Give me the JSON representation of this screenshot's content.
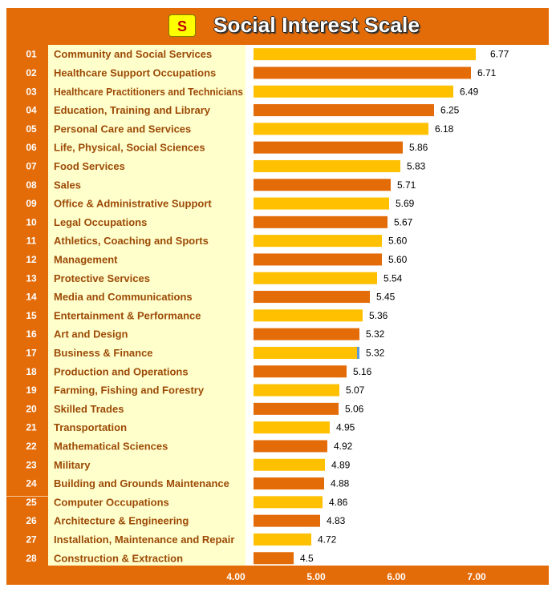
{
  "header": {
    "badge": "S",
    "title": "Social Interest Scale"
  },
  "colors": {
    "frame": "#e36c09",
    "bar_odd": "#ffc000",
    "bar_even": "#e36c09",
    "label_panel": "#ffffcc",
    "category_text": "#9c4a06",
    "highlight": "#5b9bd5"
  },
  "chart_data": {
    "type": "bar",
    "orientation": "horizontal",
    "title": "Social Interest Scale",
    "xlim": [
      4.0,
      7.0
    ],
    "x_ticks": [
      "4.00",
      "5.00",
      "6.00",
      "7.00"
    ],
    "rows": [
      {
        "rank": "01",
        "category": "Community and Social Services",
        "value": 6.77,
        "label": "6.77"
      },
      {
        "rank": "02",
        "category": "Healthcare Support Occupations",
        "value": 6.71,
        "label": "6.71"
      },
      {
        "rank": "03",
        "category": "Healthcare Practitioners and Technicians",
        "value": 6.49,
        "label": "6.49"
      },
      {
        "rank": "04",
        "category": "Education, Training and Library",
        "value": 6.25,
        "label": "6.25"
      },
      {
        "rank": "05",
        "category": "Personal Care and Services",
        "value": 6.18,
        "label": "6.18"
      },
      {
        "rank": "06",
        "category": "Life, Physical, Social Sciences",
        "value": 5.86,
        "label": "5.86"
      },
      {
        "rank": "07",
        "category": "Food Services",
        "value": 5.83,
        "label": "5.83"
      },
      {
        "rank": "08",
        "category": "Sales",
        "value": 5.71,
        "label": "5.71"
      },
      {
        "rank": "09",
        "category": "Office & Administrative Support",
        "value": 5.69,
        "label": "5.69"
      },
      {
        "rank": "10",
        "category": "Legal Occupations",
        "value": 5.67,
        "label": "5.67"
      },
      {
        "rank": "11",
        "category": "Athletics, Coaching and Sports",
        "value": 5.6,
        "label": "5.60"
      },
      {
        "rank": "12",
        "category": "Management",
        "value": 5.6,
        "label": "5.60"
      },
      {
        "rank": "13",
        "category": "Protective Services",
        "value": 5.54,
        "label": "5.54"
      },
      {
        "rank": "14",
        "category": "Media and Communications",
        "value": 5.45,
        "label": "5.45"
      },
      {
        "rank": "15",
        "category": "Entertainment & Performance",
        "value": 5.36,
        "label": "5.36"
      },
      {
        "rank": "16",
        "category": "Art and Design",
        "value": 5.32,
        "label": "5.32"
      },
      {
        "rank": "17",
        "category": "Business & Finance",
        "value": 5.32,
        "label": "5.32",
        "highlight": true
      },
      {
        "rank": "18",
        "category": "Production and Operations",
        "value": 5.16,
        "label": "5.16"
      },
      {
        "rank": "19",
        "category": "Farming, Fishing and Forestry",
        "value": 5.07,
        "label": "5.07"
      },
      {
        "rank": "20",
        "category": "Skilled Trades",
        "value": 5.06,
        "label": "5.06"
      },
      {
        "rank": "21",
        "category": "Transportation",
        "value": 4.95,
        "label": "4.95"
      },
      {
        "rank": "22",
        "category": "Mathematical Sciences",
        "value": 4.92,
        "label": "4.92"
      },
      {
        "rank": "23",
        "category": "Military",
        "value": 4.89,
        "label": "4.89"
      },
      {
        "rank": "24",
        "category": "Building and Grounds Maintenance",
        "value": 4.88,
        "label": "4.88"
      },
      {
        "rank": "25",
        "category": "Computer Occupations",
        "value": 4.86,
        "label": "4.86"
      },
      {
        "rank": "26",
        "category": "Architecture & Engineering",
        "value": 4.83,
        "label": "4.83"
      },
      {
        "rank": "27",
        "category": "Installation, Maintenance and Repair",
        "value": 4.72,
        "label": "4.72"
      },
      {
        "rank": "28",
        "category": "Construction & Extraction",
        "value": 4.5,
        "label": "4.5"
      }
    ]
  }
}
